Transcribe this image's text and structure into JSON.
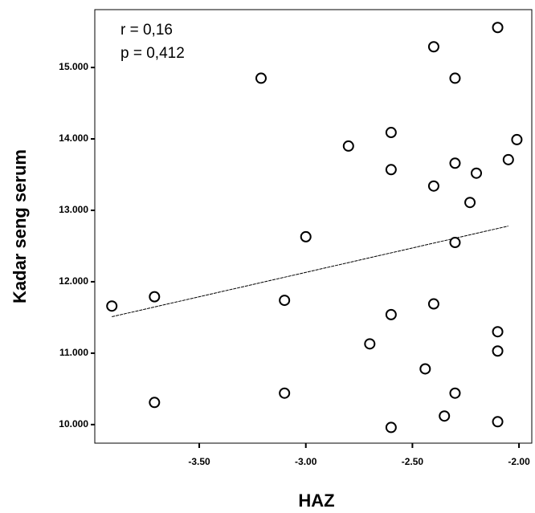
{
  "chart_data": {
    "type": "scatter",
    "annotations": [
      "r = 0,16",
      "p = 0,412"
    ],
    "x_label": "HAZ",
    "y_label": "Kadar seng serum",
    "x": [
      -3.91,
      -3.71,
      -3.71,
      -3.21,
      -3.1,
      -3.1,
      -3.0,
      -2.8,
      -2.7,
      -2.6,
      -2.6,
      -2.6,
      -2.6,
      -2.44,
      -2.4,
      -2.4,
      -2.4,
      -2.35,
      -2.3,
      -2.3,
      -2.3,
      -2.3,
      -2.23,
      -2.2,
      -2.1,
      -2.1,
      -2.1,
      -2.1,
      -2.05,
      -2.01
    ],
    "values": [
      11660,
      11790,
      10310,
      14850,
      11740,
      10440,
      12630,
      13900,
      11130,
      14090,
      13570,
      11540,
      9960,
      10780,
      15290,
      13340,
      11690,
      10120,
      14850,
      13660,
      12550,
      10440,
      13110,
      13520,
      15560,
      11300,
      11030,
      10040,
      13710,
      13990
    ],
    "color": "#000000",
    "trend_line": {
      "x": [
        -3.91,
        -2.05
      ],
      "values": [
        11510,
        12780
      ]
    },
    "xlim": [
      -3.99,
      -1.94
    ],
    "ylim": [
      9740,
      15810
    ],
    "xticks": [
      {
        "value": -3.5,
        "label": "-3.50"
      },
      {
        "value": -3.0,
        "label": "-3.00"
      },
      {
        "value": -2.5,
        "label": "-2.50"
      },
      {
        "value": -2.0,
        "label": "-2.00"
      }
    ],
    "yticks": [
      {
        "value": 10000,
        "label": "10.000"
      },
      {
        "value": 11000,
        "label": "11.000"
      },
      {
        "value": 12000,
        "label": "12.000"
      },
      {
        "value": 13000,
        "label": "13.000"
      },
      {
        "value": 14000,
        "label": "14.000"
      },
      {
        "value": 15000,
        "label": "15.000"
      }
    ]
  }
}
